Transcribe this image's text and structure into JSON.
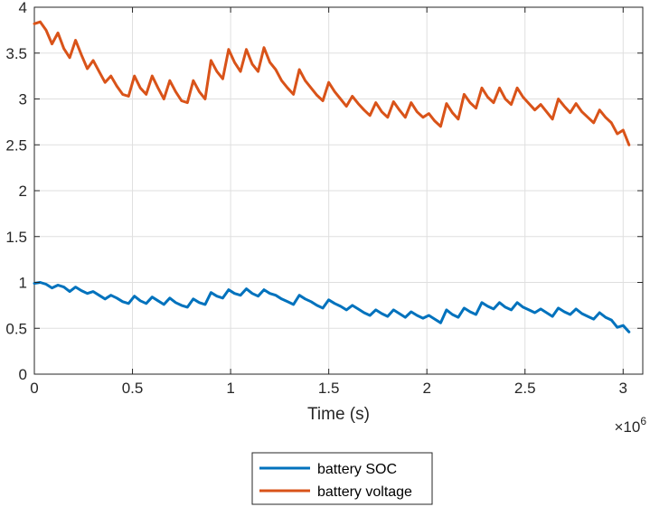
{
  "chart_data": {
    "type": "line",
    "title": "",
    "xlabel": "Time (s)",
    "ylabel": "",
    "x_exponent_label": "×10",
    "x_exponent_power": "6",
    "xlim": [
      0,
      3.1
    ],
    "ylim": [
      0,
      4
    ],
    "x_scale_multiplier": 1000000,
    "xticks": [
      0,
      0.5,
      1,
      1.5,
      2,
      2.5,
      3
    ],
    "xtick_labels": [
      "0",
      "0.5",
      "1",
      "1.5",
      "2",
      "2.5",
      "3"
    ],
    "yticks": [
      0,
      0.5,
      1,
      1.5,
      2,
      2.5,
      3,
      3.5,
      4
    ],
    "ytick_labels": [
      "0",
      "0.5",
      "1",
      "1.5",
      "2",
      "2.5",
      "3",
      "3.5",
      "4"
    ],
    "grid": true,
    "legend_position": "bottom-outside",
    "series": [
      {
        "name": "battery SOC",
        "color": "#0072BD",
        "x": [
          0,
          0.03,
          0.06,
          0.09,
          0.12,
          0.15,
          0.18,
          0.21,
          0.24,
          0.27,
          0.3,
          0.33,
          0.36,
          0.39,
          0.42,
          0.45,
          0.48,
          0.51,
          0.54,
          0.57,
          0.6,
          0.63,
          0.66,
          0.69,
          0.72,
          0.75,
          0.78,
          0.81,
          0.84,
          0.87,
          0.9,
          0.93,
          0.96,
          0.99,
          1.02,
          1.05,
          1.08,
          1.11,
          1.14,
          1.17,
          1.2,
          1.23,
          1.26,
          1.29,
          1.32,
          1.35,
          1.38,
          1.41,
          1.44,
          1.47,
          1.5,
          1.53,
          1.56,
          1.59,
          1.62,
          1.65,
          1.68,
          1.71,
          1.74,
          1.77,
          1.8,
          1.83,
          1.86,
          1.89,
          1.92,
          1.95,
          1.98,
          2.01,
          2.04,
          2.07,
          2.1,
          2.13,
          2.16,
          2.19,
          2.22,
          2.25,
          2.28,
          2.31,
          2.34,
          2.37,
          2.4,
          2.43,
          2.46,
          2.49,
          2.52,
          2.55,
          2.58,
          2.61,
          2.64,
          2.67,
          2.7,
          2.73,
          2.76,
          2.79,
          2.82,
          2.85,
          2.88,
          2.91,
          2.94,
          2.97,
          3.0,
          3.03
        ],
        "y": [
          0.99,
          1.0,
          0.98,
          0.94,
          0.97,
          0.95,
          0.9,
          0.95,
          0.91,
          0.88,
          0.9,
          0.86,
          0.82,
          0.86,
          0.83,
          0.79,
          0.77,
          0.85,
          0.8,
          0.77,
          0.84,
          0.8,
          0.76,
          0.83,
          0.78,
          0.75,
          0.73,
          0.82,
          0.78,
          0.76,
          0.89,
          0.85,
          0.83,
          0.92,
          0.88,
          0.86,
          0.93,
          0.88,
          0.85,
          0.92,
          0.88,
          0.86,
          0.82,
          0.79,
          0.76,
          0.86,
          0.82,
          0.79,
          0.75,
          0.72,
          0.81,
          0.77,
          0.74,
          0.7,
          0.75,
          0.71,
          0.67,
          0.64,
          0.7,
          0.66,
          0.63,
          0.7,
          0.66,
          0.62,
          0.68,
          0.64,
          0.61,
          0.64,
          0.6,
          0.56,
          0.7,
          0.65,
          0.62,
          0.72,
          0.68,
          0.65,
          0.78,
          0.74,
          0.71,
          0.78,
          0.73,
          0.7,
          0.78,
          0.73,
          0.7,
          0.67,
          0.71,
          0.67,
          0.63,
          0.72,
          0.68,
          0.65,
          0.71,
          0.66,
          0.63,
          0.6,
          0.67,
          0.62,
          0.59,
          0.51,
          0.53,
          0.46
        ]
      },
      {
        "name": "battery voltage",
        "color": "#D95319",
        "x": [
          0,
          0.03,
          0.06,
          0.09,
          0.12,
          0.15,
          0.18,
          0.21,
          0.24,
          0.27,
          0.3,
          0.33,
          0.36,
          0.39,
          0.42,
          0.45,
          0.48,
          0.51,
          0.54,
          0.57,
          0.6,
          0.63,
          0.66,
          0.69,
          0.72,
          0.75,
          0.78,
          0.81,
          0.84,
          0.87,
          0.9,
          0.93,
          0.96,
          0.99,
          1.02,
          1.05,
          1.08,
          1.11,
          1.14,
          1.17,
          1.2,
          1.23,
          1.26,
          1.29,
          1.32,
          1.35,
          1.38,
          1.41,
          1.44,
          1.47,
          1.5,
          1.53,
          1.56,
          1.59,
          1.62,
          1.65,
          1.68,
          1.71,
          1.74,
          1.77,
          1.8,
          1.83,
          1.86,
          1.89,
          1.92,
          1.95,
          1.98,
          2.01,
          2.04,
          2.07,
          2.1,
          2.13,
          2.16,
          2.19,
          2.22,
          2.25,
          2.28,
          2.31,
          2.34,
          2.37,
          2.4,
          2.43,
          2.46,
          2.49,
          2.52,
          2.55,
          2.58,
          2.61,
          2.64,
          2.67,
          2.7,
          2.73,
          2.76,
          2.79,
          2.82,
          2.85,
          2.88,
          2.91,
          2.94,
          2.97,
          3.0,
          3.03
        ],
        "y": [
          3.82,
          3.84,
          3.75,
          3.6,
          3.72,
          3.55,
          3.45,
          3.64,
          3.48,
          3.33,
          3.42,
          3.3,
          3.18,
          3.25,
          3.14,
          3.05,
          3.03,
          3.25,
          3.12,
          3.05,
          3.25,
          3.12,
          3.0,
          3.2,
          3.08,
          2.98,
          2.96,
          3.2,
          3.08,
          3.0,
          3.42,
          3.3,
          3.22,
          3.54,
          3.4,
          3.3,
          3.54,
          3.38,
          3.3,
          3.56,
          3.4,
          3.32,
          3.2,
          3.12,
          3.05,
          3.32,
          3.2,
          3.12,
          3.04,
          2.98,
          3.18,
          3.08,
          3.0,
          2.92,
          3.03,
          2.95,
          2.88,
          2.82,
          2.96,
          2.86,
          2.8,
          2.97,
          2.88,
          2.8,
          2.96,
          2.86,
          2.8,
          2.84,
          2.76,
          2.7,
          2.95,
          2.85,
          2.78,
          3.05,
          2.96,
          2.9,
          3.12,
          3.02,
          2.96,
          3.12,
          3.0,
          2.94,
          3.12,
          3.02,
          2.95,
          2.88,
          2.94,
          2.86,
          2.78,
          3.0,
          2.92,
          2.85,
          2.95,
          2.86,
          2.8,
          2.74,
          2.88,
          2.8,
          2.74,
          2.62,
          2.66,
          2.5
        ]
      }
    ]
  }
}
